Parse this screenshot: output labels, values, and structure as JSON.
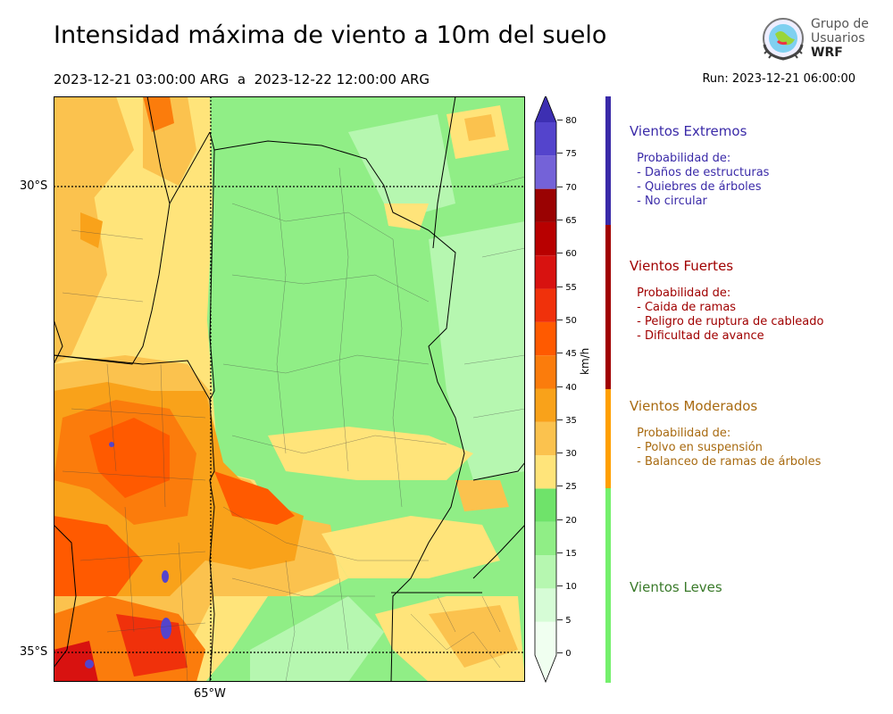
{
  "header": {
    "title": "Intensidad máxima de viento a 10m del suelo",
    "period": "2023-12-21 03:00:00 ARG  a  2023-12-22 12:00:00 ARG",
    "run": "Run: 2023-12-21 06:00:00"
  },
  "logo": {
    "line1": "Grupo de",
    "line2": "Usuarios",
    "line3": "WRF"
  },
  "map": {
    "lat_labels": [
      "30°S",
      "35°S"
    ],
    "lon_labels": [
      "65°W"
    ]
  },
  "colorbar": {
    "unit": "km/h",
    "ticks": [
      "0",
      "5",
      "10",
      "15",
      "20",
      "25",
      "30",
      "35",
      "40",
      "45",
      "50",
      "55",
      "60",
      "65",
      "70",
      "75",
      "80"
    ],
    "levels": [
      {
        "from": 0,
        "to": 5,
        "color": "#f0fff0"
      },
      {
        "from": 5,
        "to": 10,
        "color": "#d6fcd6"
      },
      {
        "from": 10,
        "to": 15,
        "color": "#b6f7b0"
      },
      {
        "from": 15,
        "to": 20,
        "color": "#90ee86"
      },
      {
        "from": 20,
        "to": 25,
        "color": "#6fe36a"
      },
      {
        "from": 25,
        "to": 30,
        "color": "#ffe47a"
      },
      {
        "from": 30,
        "to": 35,
        "color": "#fbc24e"
      },
      {
        "from": 35,
        "to": 40,
        "color": "#f9a21a"
      },
      {
        "from": 40,
        "to": 45,
        "color": "#fb7c0c"
      },
      {
        "from": 45,
        "to": 50,
        "color": "#ff5a00"
      },
      {
        "from": 50,
        "to": 55,
        "color": "#f0310b"
      },
      {
        "from": 55,
        "to": 60,
        "color": "#d81210"
      },
      {
        "from": 60,
        "to": 65,
        "color": "#b80000"
      },
      {
        "from": 65,
        "to": 70,
        "color": "#9a0202"
      },
      {
        "from": 70,
        "to": 75,
        "color": "#7462d8"
      },
      {
        "from": 75,
        "to": 80,
        "color": "#5444cc"
      },
      {
        "from": 80,
        "to": 85,
        "color": "#3d2fb2"
      }
    ]
  },
  "categories": [
    {
      "name": "Vientos Extremos",
      "color": "#3a2aa8",
      "bar_color": "#3a2aa8",
      "desc": " Probabilidad de:\n - Daños de estructuras\n - Quiebres de árboles\n - No circular"
    },
    {
      "name": "Vientos Fuertes",
      "color": "#a00000",
      "bar_color": "#a00000",
      "desc": " Probabilidad de:\n - Caida de ramas\n - Peligro de ruptura de cableado\n - Dificultad de avance"
    },
    {
      "name": "Vientos Moderados",
      "color": "#a86a10",
      "bar_color": "#ff9f00",
      "desc": " Probabilidad de:\n - Polvo en suspensión\n - Balanceo de ramas de árboles"
    },
    {
      "name": "Vientos Leves",
      "color": "#3a7a2a",
      "bar_color": "#74f06c",
      "desc": ""
    }
  ]
}
